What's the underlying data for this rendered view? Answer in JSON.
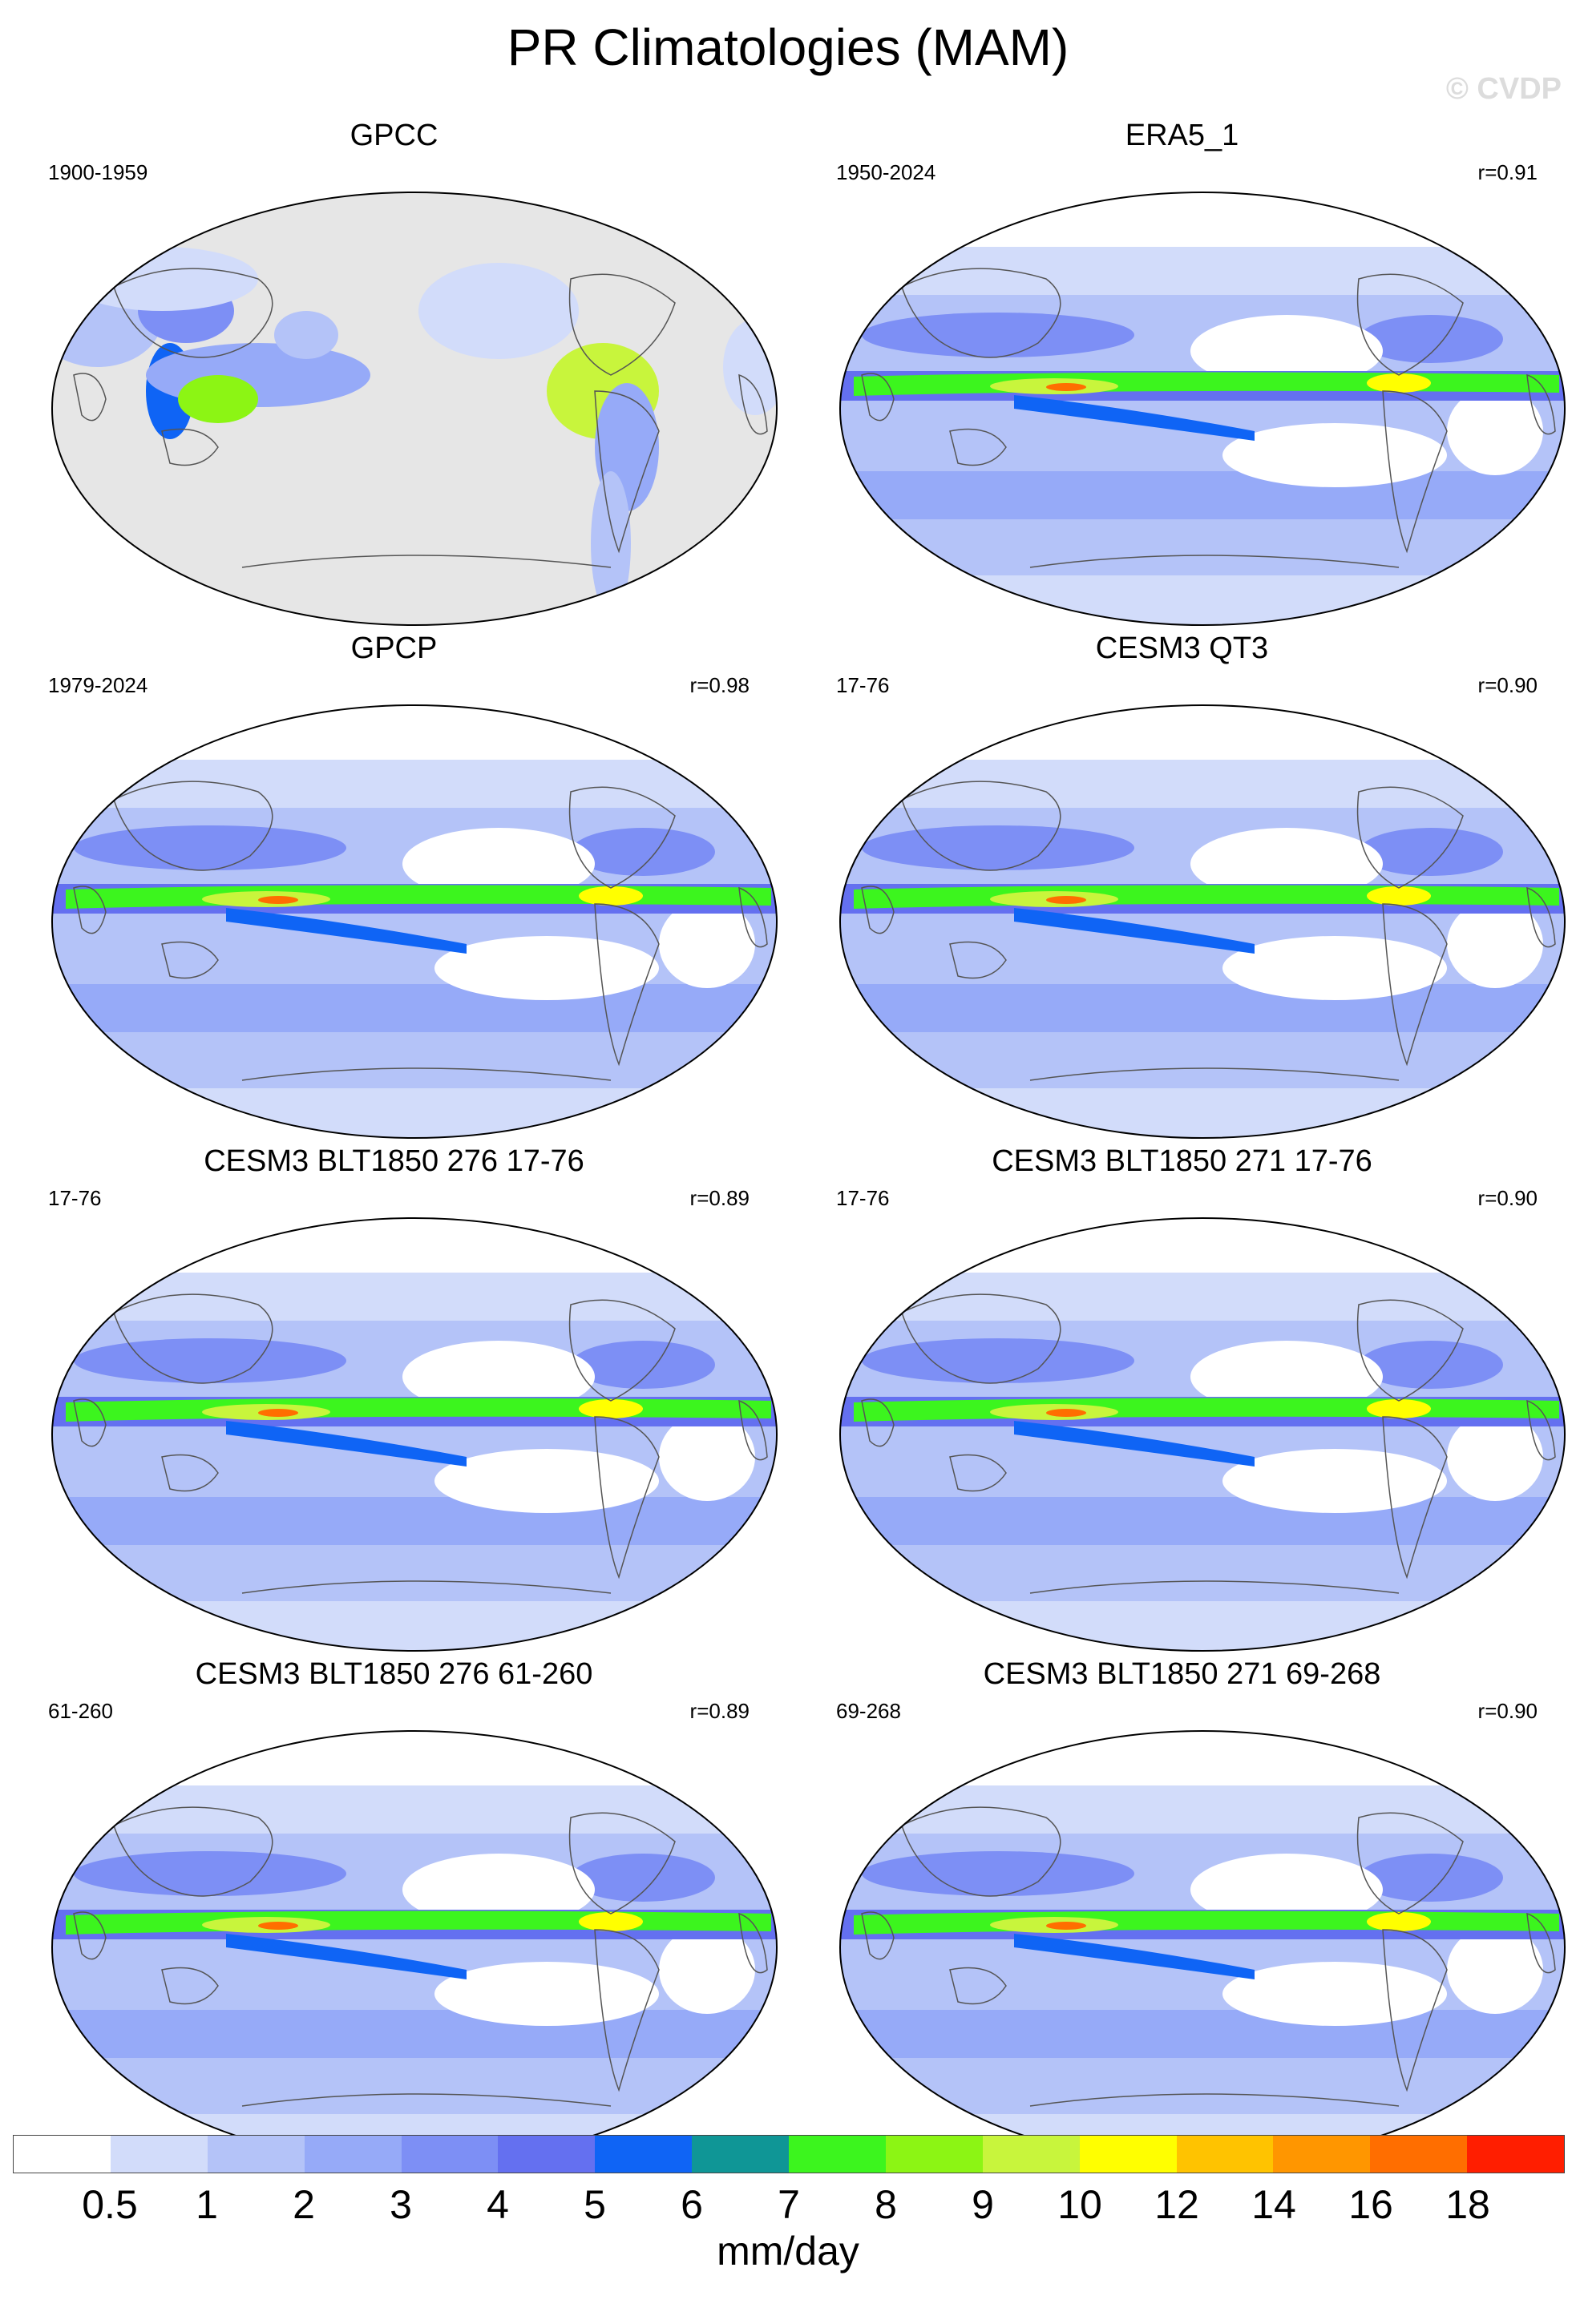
{
  "title": "PR Climatologies (MAM)",
  "watermark": "© CVDP",
  "panels": [
    {
      "title": "GPCC",
      "period": "1900-1959",
      "r": "",
      "land_only": true
    },
    {
      "title": "ERA5_1",
      "period": "1950-2024",
      "r": "r=0.91",
      "land_only": false
    },
    {
      "title": "GPCP",
      "period": "1979-2024",
      "r": "r=0.98",
      "land_only": false
    },
    {
      "title": "CESM3 QT3",
      "period": "17-76",
      "r": "r=0.90",
      "land_only": false
    },
    {
      "title": "CESM3 BLT1850 276 17-76",
      "period": "17-76",
      "r": "r=0.89",
      "land_only": false
    },
    {
      "title": "CESM3 BLT1850 271 17-76",
      "period": "17-76",
      "r": "r=0.90",
      "land_only": false
    },
    {
      "title": "CESM3 BLT1850 276 61-260",
      "period": "61-260",
      "r": "r=0.89",
      "land_only": false
    },
    {
      "title": "CESM3 BLT1850 271 69-268",
      "period": "69-268",
      "r": "r=0.90",
      "land_only": false
    }
  ],
  "colorbar": {
    "units": "mm/day",
    "labels": [
      "0.5",
      "1",
      "2",
      "3",
      "4",
      "5",
      "6",
      "7",
      "8",
      "9",
      "10",
      "12",
      "14",
      "16",
      "18"
    ],
    "colors": [
      "#ffffff",
      "#d2dcfa",
      "#b4c3f8",
      "#96aaf8",
      "#7d8ff5",
      "#6470f0",
      "#0f64f5",
      "#0f9696",
      "#3cf51e",
      "#8cf514",
      "#c8f53c",
      "#ffff00",
      "#ffc300",
      "#ff9600",
      "#ff6e00",
      "#ff1e00"
    ]
  },
  "map_colors": {
    "land_mask": "#e6e6e6",
    "coastline": "#555555"
  }
}
